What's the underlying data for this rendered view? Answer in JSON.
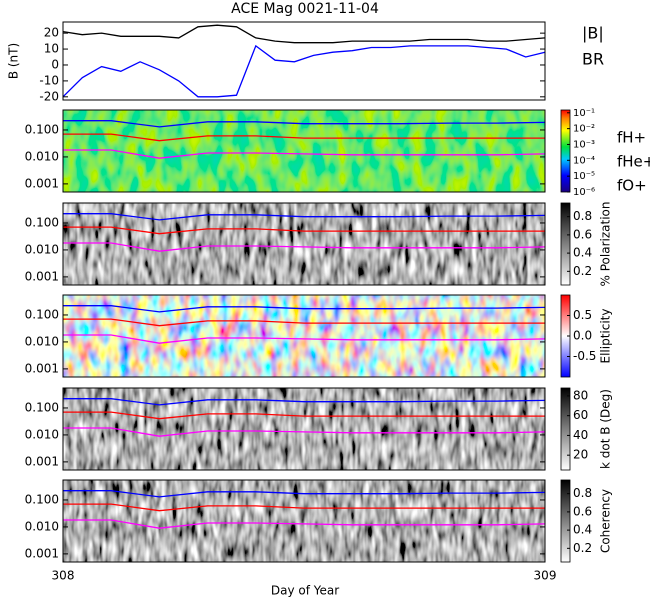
{
  "figure": {
    "title": "ACE Mag 0021-11-04",
    "x_label": "Day of Year",
    "xlim": [
      308,
      309
    ],
    "xticks": [
      308,
      309
    ]
  },
  "frequency_lines": {
    "x": [
      308,
      308.1,
      308.2,
      308.3,
      308.4,
      308.5,
      308.6,
      308.7,
      308.8,
      308.9,
      309
    ],
    "series": [
      {
        "name": "fH+",
        "color": "#0000ff",
        "values": [
          0.22,
          0.22,
          0.13,
          0.2,
          0.2,
          0.17,
          0.17,
          0.17,
          0.18,
          0.18,
          0.19
        ]
      },
      {
        "name": "fHe+",
        "color": "#ff0000",
        "values": [
          0.07,
          0.07,
          0.04,
          0.06,
          0.06,
          0.05,
          0.05,
          0.05,
          0.05,
          0.05,
          0.05
        ]
      },
      {
        "name": "fO+",
        "color": "#ff00ff",
        "values": [
          0.018,
          0.018,
          0.009,
          0.014,
          0.014,
          0.013,
          0.012,
          0.012,
          0.012,
          0.012,
          0.013
        ]
      }
    ]
  },
  "chart_data": [
    {
      "type": "line",
      "y_label": "B (nT)",
      "ylim": [
        -22,
        27
      ],
      "yticks": [
        -20,
        -10,
        0,
        10,
        20
      ],
      "x": [
        308,
        308.04,
        308.08,
        308.12,
        308.16,
        308.2,
        308.24,
        308.28,
        308.32,
        308.36,
        308.4,
        308.44,
        308.48,
        308.52,
        308.56,
        308.6,
        308.64,
        308.68,
        308.72,
        308.76,
        308.8,
        308.84,
        308.88,
        308.92,
        308.96,
        309
      ],
      "series": [
        {
          "name": "|B|",
          "color": "#000000",
          "values": [
            21,
            19,
            20,
            18,
            18,
            18,
            17,
            24,
            25,
            24,
            17,
            15,
            14,
            14,
            14,
            15,
            15,
            15,
            15,
            16,
            16,
            16,
            15,
            15,
            16,
            17
          ]
        },
        {
          "name": "BR",
          "color": "#0000ff",
          "values": [
            -20,
            -8,
            -1,
            -4,
            2,
            -3,
            -10,
            -20,
            -20,
            -19,
            12,
            3,
            2,
            6,
            8,
            9,
            11,
            11,
            12,
            12,
            12,
            12,
            11,
            10,
            5,
            8
          ]
        }
      ]
    },
    {
      "type": "spectrogram",
      "texture": "spectrum",
      "ylim": [
        0.0005,
        0.55
      ],
      "log_y": true,
      "yticks": [
        {
          "value": 0.001,
          "label": "0.001"
        },
        {
          "value": 0.01,
          "label": "0.010"
        },
        {
          "value": 0.1,
          "label": "0.100"
        }
      ],
      "colormap": "rainbow",
      "clim": [
        1e-06,
        0.15
      ],
      "log_c": true,
      "cticks": [
        {
          "value": 0.1,
          "label": "10⁻¹"
        },
        {
          "value": 0.01,
          "label": "10⁻²"
        },
        {
          "value": 0.001,
          "label": "10⁻³"
        },
        {
          "value": 0.0001,
          "label": "10⁻⁴"
        },
        {
          "value": 1e-05,
          "label": "10⁻⁵"
        },
        {
          "value": 1e-06,
          "label": "10⁻⁶"
        }
      ],
      "legend": true
    },
    {
      "type": "spectrogram",
      "texture": "gray",
      "ylim": [
        0.0005,
        0.55
      ],
      "log_y": true,
      "yticks": [
        {
          "value": 0.001,
          "label": "0.001"
        },
        {
          "value": 0.01,
          "label": "0.010"
        },
        {
          "value": 0.1,
          "label": "0.100"
        }
      ],
      "colormap": "gray",
      "clim": [
        0.05,
        0.95
      ],
      "cticks": [
        0.2,
        0.4,
        0.6,
        0.8
      ],
      "c_label": "% Polarization"
    },
    {
      "type": "spectrogram",
      "texture": "bwr",
      "ylim": [
        0.0005,
        0.55
      ],
      "log_y": true,
      "yticks": [
        {
          "value": 0.001,
          "label": "0.001"
        },
        {
          "value": 0.01,
          "label": "0.010"
        },
        {
          "value": 0.1,
          "label": "0.100"
        }
      ],
      "colormap": "bwr",
      "clim": [
        -1,
        1
      ],
      "cticks": [
        -0.5,
        {
          "value": 0,
          "label": "0.0"
        },
        0.5
      ],
      "c_label": "Ellipticity"
    },
    {
      "type": "spectrogram",
      "texture": "gray",
      "ylim": [
        0.0005,
        0.55
      ],
      "log_y": true,
      "yticks": [
        {
          "value": 0.001,
          "label": "0.001"
        },
        {
          "value": 0.01,
          "label": "0.010"
        },
        {
          "value": 0.1,
          "label": "0.100"
        }
      ],
      "colormap": "gray",
      "clim": [
        5,
        88
      ],
      "cticks": [
        20,
        40,
        60,
        80
      ],
      "c_label": "k dot B (Deg)"
    },
    {
      "type": "spectrogram",
      "texture": "gray",
      "ylim": [
        0.0005,
        0.55
      ],
      "log_y": true,
      "yticks": [
        {
          "value": 0.001,
          "label": "0.001"
        },
        {
          "value": 0.01,
          "label": "0.010"
        },
        {
          "value": 0.1,
          "label": "0.100"
        }
      ],
      "colormap": "gray",
      "clim": [
        0.05,
        0.95
      ],
      "cticks": [
        0.2,
        0.4,
        0.6,
        0.8
      ],
      "c_label": "Coherency"
    }
  ]
}
